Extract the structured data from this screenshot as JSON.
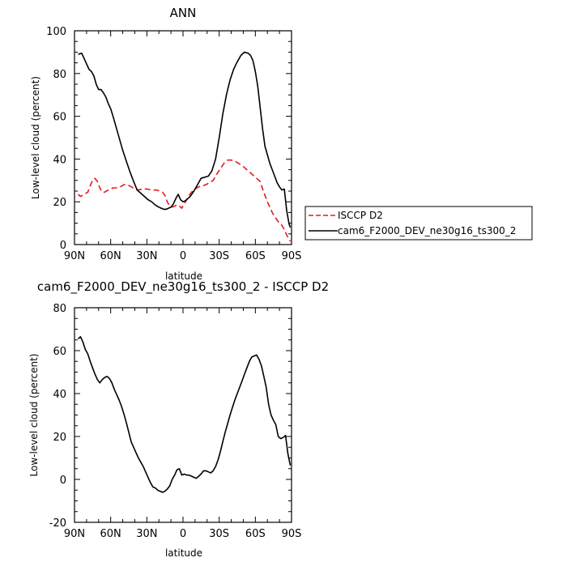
{
  "chart_data": [
    {
      "type": "line",
      "title": "ANN",
      "xlabel": "latitude",
      "ylabel": "Low-level cloud (percent)",
      "xticks": [
        -90,
        -60,
        -30,
        0,
        30,
        60,
        90
      ],
      "xticklabels": [
        "90N",
        "60N",
        "30N",
        "0",
        "30S",
        "60S",
        "90S"
      ],
      "xlim": [
        -90,
        90
      ],
      "ylim": [
        0,
        100
      ],
      "yticks": [
        0,
        20,
        40,
        60,
        80,
        100
      ],
      "grid": false,
      "legend_position": "right",
      "series": [
        {
          "name": "ISCCP D2",
          "color": "#e41a1c",
          "dash": "dashed",
          "x": [
            -87,
            -85,
            -82,
            -79,
            -77,
            -75,
            -73,
            -71,
            -69,
            -67,
            -65,
            -62,
            -58,
            -55,
            -52,
            -49,
            -46,
            -43,
            -40,
            -37,
            -34,
            -30,
            -26,
            -22,
            -19,
            -17,
            -15,
            -13,
            -11,
            -9,
            -7,
            -5,
            -3,
            -1,
            1,
            3,
            5,
            7,
            10,
            13,
            16,
            19,
            22,
            25,
            28,
            31,
            34,
            37,
            40,
            43,
            46,
            49,
            52,
            55,
            58,
            61,
            64,
            66,
            68,
            70,
            72,
            74,
            76,
            78,
            80,
            82,
            84,
            86,
            88,
            89
          ],
          "y": [
            23.5,
            22.5,
            23.5,
            24.5,
            27.5,
            30,
            31,
            29.5,
            26.5,
            24.5,
            24.5,
            25.5,
            26.5,
            26.5,
            27,
            28,
            28,
            27,
            26,
            25.5,
            26,
            26,
            25.5,
            25.5,
            25,
            24.5,
            23,
            20,
            18,
            17.5,
            18,
            18.5,
            18,
            17,
            19,
            21,
            23,
            24.5,
            26,
            27,
            27.5,
            28,
            29,
            30,
            33,
            35.5,
            38,
            39.5,
            39.5,
            39,
            38,
            37,
            35.5,
            34,
            32.5,
            31,
            29.5,
            26,
            23,
            20,
            17.5,
            15,
            13,
            11.5,
            10,
            9,
            7,
            4.5,
            2.5,
            1.5
          ]
        },
        {
          "name": "cam6_F2000_DEV_ne30g16_ts300_2",
          "color": "#000000",
          "dash": "solid",
          "x": [
            -87,
            -84,
            -82,
            -80,
            -78,
            -76,
            -74,
            -72,
            -70,
            -68,
            -66,
            -64,
            -62,
            -60,
            -58,
            -56,
            -54,
            -52,
            -50,
            -47,
            -44,
            -41,
            -38,
            -35,
            -32,
            -29,
            -26,
            -23,
            -20,
            -18,
            -16,
            -14,
            -12,
            -10,
            -8,
            -6,
            -4,
            -2,
            0,
            2,
            4,
            6,
            9,
            12,
            15,
            18,
            21,
            24,
            27,
            30,
            33,
            36,
            39,
            42,
            45,
            48,
            51,
            54,
            56,
            58,
            60,
            62,
            64,
            66,
            68,
            70,
            72,
            74,
            76,
            78,
            80,
            82,
            84,
            86,
            88,
            89
          ],
          "y": [
            89,
            89.5,
            87,
            84.5,
            82,
            81,
            79,
            75,
            72.5,
            72.5,
            71,
            69,
            66,
            63.5,
            60,
            56,
            52,
            48,
            44,
            39,
            34,
            29.5,
            25.5,
            24,
            22.5,
            21,
            20,
            18.5,
            17.5,
            17,
            16.5,
            16.5,
            17,
            17.5,
            19,
            21.5,
            23.5,
            21,
            20,
            20.5,
            21.5,
            22.5,
            25,
            28,
            31,
            31.5,
            32,
            34.5,
            40,
            50,
            61,
            70,
            77,
            82,
            85.5,
            88.5,
            90,
            89.5,
            88.5,
            86,
            81,
            74,
            64,
            54,
            46,
            42,
            38,
            35,
            32,
            29,
            27,
            25.5,
            26,
            16,
            9.5,
            8
          ]
        }
      ]
    },
    {
      "type": "line",
      "title": "cam6_F2000_DEV_ne30g16_ts300_2 - ISCCP D2",
      "xlabel": "latitude",
      "ylabel": "Low-level cloud (percent)",
      "xticks": [
        -90,
        -60,
        -30,
        0,
        30,
        60,
        90
      ],
      "xticklabels": [
        "90N",
        "60N",
        "30N",
        "0",
        "30S",
        "60S",
        "90S"
      ],
      "xlim": [
        -90,
        90
      ],
      "ylim": [
        -20,
        80
      ],
      "yticks": [
        -20,
        0,
        20,
        40,
        60,
        80
      ],
      "grid": false,
      "series": [
        {
          "color": "#000000",
          "dash": "solid",
          "x": [
            -87,
            -85,
            -83,
            -81,
            -79,
            -77,
            -75,
            -73,
            -71,
            -69,
            -67,
            -65,
            -63,
            -61,
            -59,
            -57,
            -55,
            -53,
            -51,
            -49,
            -47,
            -45,
            -43,
            -41,
            -39,
            -37,
            -35,
            -33,
            -31,
            -29,
            -27,
            -25,
            -23,
            -21,
            -19,
            -17,
            -15,
            -13,
            -11,
            -9,
            -7,
            -5,
            -3,
            -1,
            1,
            3,
            5,
            7,
            9,
            11,
            13,
            15,
            17,
            19,
            21,
            23,
            25,
            27,
            29,
            31,
            33,
            35,
            37,
            39,
            41,
            43,
            45,
            47,
            49,
            51,
            53,
            55,
            57,
            59,
            61,
            63,
            65,
            67,
            69,
            71,
            73,
            75,
            77,
            79,
            81,
            83,
            85,
            87,
            89
          ],
          "y": [
            65.5,
            66.5,
            64,
            60.5,
            58.5,
            55,
            52,
            49,
            46.5,
            45,
            46.5,
            47.5,
            48,
            47,
            45,
            42,
            39.5,
            37,
            34,
            30.5,
            26.5,
            22,
            17.5,
            15,
            12.5,
            10,
            8,
            6,
            3.5,
            1,
            -1.5,
            -3.5,
            -4,
            -5,
            -5.5,
            -6,
            -5.5,
            -4.5,
            -3,
            0,
            2,
            4.5,
            5,
            2,
            2.5,
            2,
            2,
            1.5,
            1,
            0.5,
            1.5,
            2.5,
            4,
            4,
            3.5,
            3,
            4,
            6,
            9,
            13,
            17.5,
            22,
            26,
            30,
            33.5,
            37,
            40,
            43,
            46,
            49,
            52,
            55,
            57,
            57.5,
            58,
            56,
            53,
            48,
            43,
            35,
            30,
            27.5,
            25.5,
            20,
            19,
            19.5,
            20.5,
            12,
            6.5
          ]
        }
      ]
    }
  ]
}
